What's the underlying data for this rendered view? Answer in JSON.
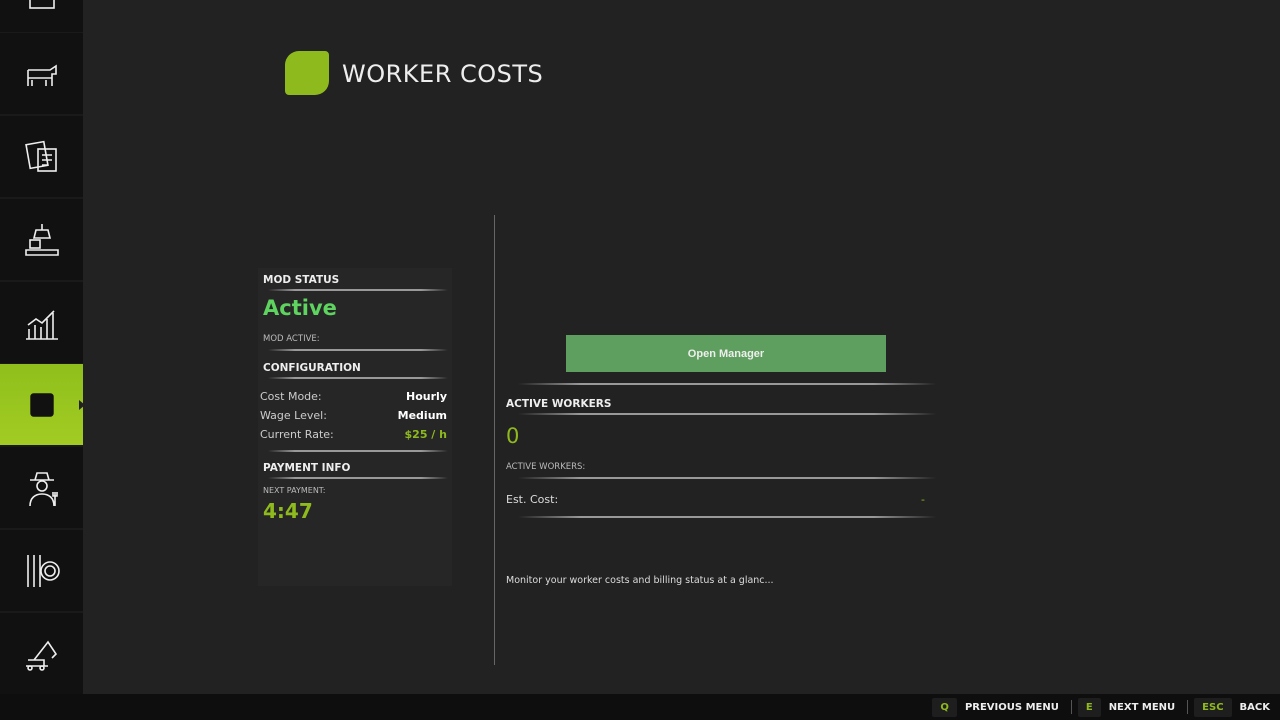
{
  "header": {
    "title": "WORKER COSTS"
  },
  "sidebar": {
    "items": [
      {
        "icon": "tractor-icon"
      },
      {
        "icon": "cow-icon"
      },
      {
        "icon": "contracts-icon"
      },
      {
        "icon": "production-icon"
      },
      {
        "icon": "chart-icon"
      },
      {
        "icon": "map-icon",
        "active": true
      },
      {
        "icon": "farmer-icon"
      },
      {
        "icon": "settings-icon"
      },
      {
        "icon": "excavator-icon"
      }
    ]
  },
  "left": {
    "mod_status_heading": "MOD STATUS",
    "status": "Active",
    "mod_active_label": "MOD ACTIVE:",
    "config_heading": "CONFIGURATION",
    "config": [
      {
        "label": "Cost Mode:",
        "value": "Hourly"
      },
      {
        "label": "Wage Level:",
        "value": "Medium"
      },
      {
        "label": "Current Rate:",
        "value": "$25 / h"
      }
    ],
    "payment_heading": "PAYMENT INFO",
    "next_payment_label": "NEXT PAYMENT:",
    "next_payment": "4:47"
  },
  "right": {
    "open_manager": "Open Manager",
    "workers_heading": "ACTIVE WORKERS",
    "workers_count": "0",
    "workers_label": "ACTIVE WORKERS:",
    "est_cost_label": "Est. Cost:",
    "est_cost_value": "-",
    "description": "Monitor your worker costs and billing status at a glanc..."
  },
  "footer": [
    {
      "key": "Q",
      "label": "PREVIOUS MENU"
    },
    {
      "key": "E",
      "label": "NEXT MENU"
    },
    {
      "key": "ESC",
      "label": "BACK"
    }
  ],
  "colors": {
    "accent": "#8fba1e",
    "active_status": "#5fd35f",
    "button": "#5e9e5e"
  }
}
